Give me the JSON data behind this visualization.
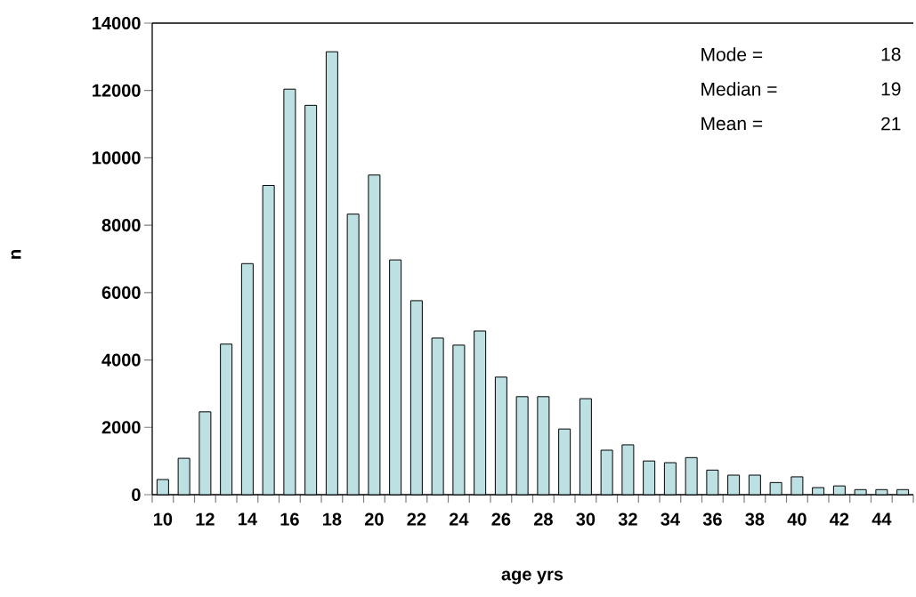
{
  "chart_data": {
    "type": "bar",
    "xlabel": "age yrs",
    "ylabel": "n",
    "categories": [
      "10",
      null,
      "12",
      null,
      "14",
      null,
      "16",
      null,
      "18",
      null,
      "20",
      null,
      "22",
      null,
      "24",
      null,
      "26",
      null,
      "28",
      null,
      "30",
      null,
      "32",
      null,
      "34",
      null,
      "36",
      null,
      "38",
      null,
      "40",
      null,
      "42",
      null,
      "44",
      null
    ],
    "values": [
      450,
      1080,
      2460,
      4470,
      6860,
      9180,
      12040,
      11560,
      13150,
      8330,
      9490,
      6970,
      5760,
      4650,
      4440,
      4860,
      3490,
      2910,
      2910,
      1950,
      2850,
      1320,
      1480,
      1000,
      950,
      1100,
      730,
      580,
      580,
      360,
      530,
      210,
      260,
      150,
      150,
      150
    ],
    "color": "#bde0e3",
    "ylim": [
      0,
      14000
    ],
    "yticks": [
      0,
      2000,
      4000,
      6000,
      8000,
      10000,
      12000,
      14000
    ],
    "annotations": [
      "Mode =",
      "18",
      "Median =",
      "19",
      "Mean =",
      "21"
    ]
  }
}
